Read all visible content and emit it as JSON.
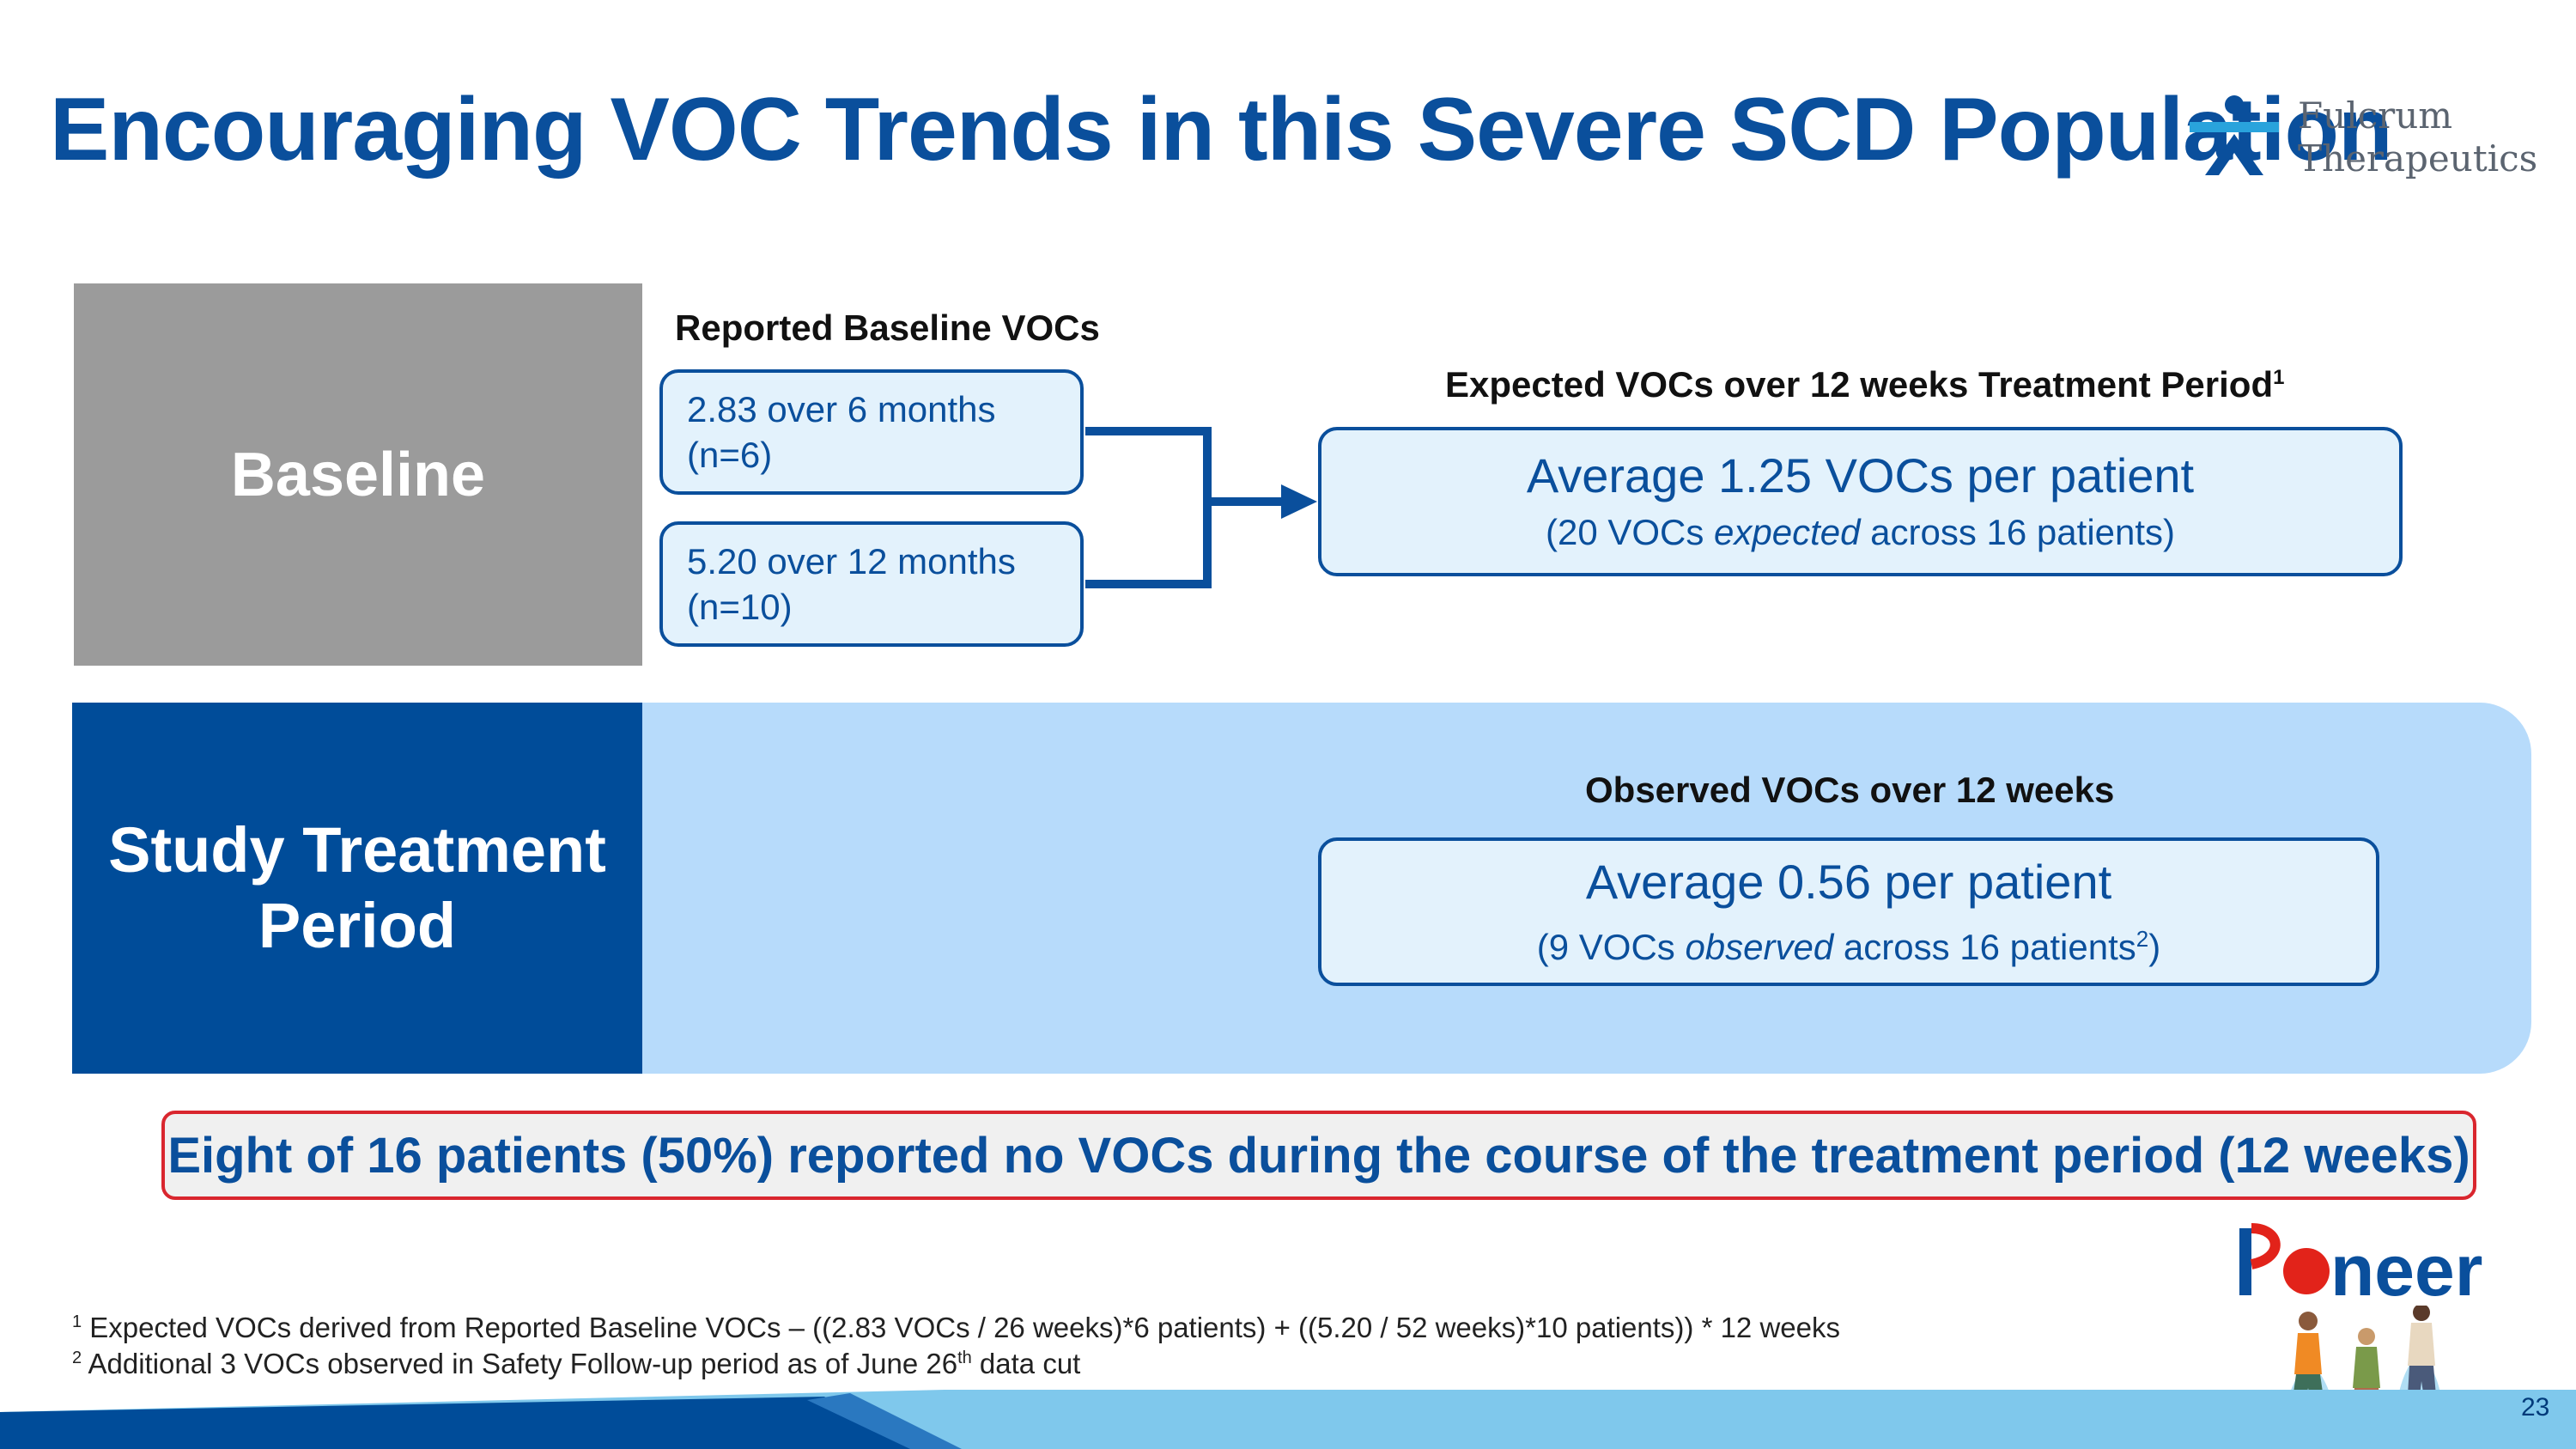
{
  "title": "Encouraging VOC Trends in this Severe SCD Population",
  "logo": {
    "line1": "Fulcrum",
    "line2": "Therapeutics"
  },
  "baseline": {
    "label": "Baseline",
    "reported_heading": "Reported Baseline VOCs",
    "box_6mo": {
      "line1": "2.83 over 6 months",
      "line2": "(n=6)"
    },
    "box_12mo": {
      "line1": "5.20 over 12 months",
      "line2": "(n=10)"
    },
    "expected_heading": "Expected VOCs over 12 weeks Treatment Period",
    "expected_heading_sup": "1",
    "expected_main": "Average 1.25 VOCs per patient",
    "expected_sub_pre": "(20 VOCs ",
    "expected_sub_em": "expected",
    "expected_sub_post": " across 16 patients)"
  },
  "study": {
    "label_line1": "Study Treatment",
    "label_line2": "Period",
    "observed_heading": "Observed VOCs over 12 weeks",
    "observed_main": "Average 0.56 per patient",
    "observed_sub_pre": "(9 VOCs ",
    "observed_sub_em": "observed",
    "observed_sub_post": " across 16 patients",
    "observed_sub_sup": "2",
    "observed_sub_end": ")"
  },
  "highlight": "Eight of 16 patients (50%) reported no VOCs during the course of the treatment period (12 weeks)",
  "footnotes": {
    "f1_sup": "1",
    "f1_text": " Expected VOCs derived from Reported Baseline VOCs – ((2.83 VOCs / 26 weeks)*6 patients) +  ((5.20 / 52 weeks)*10 patients)) * 12 weeks",
    "f2_sup": "2",
    "f2_text_pre": " Additional 3 VOCs observed in Safety Follow-up period as of June 26",
    "f2_text_sup": "th",
    "f2_text_post": " data cut"
  },
  "pioneer": "Pioneer",
  "page_number": "23",
  "colors": {
    "title_blue": "#0a4f9c",
    "navy": "#004c99",
    "light_blue_band": "#b7dbfb",
    "box_fill": "#e3f2fc",
    "grey_block": "#9b9b9b",
    "highlight_border": "#d9262e",
    "pioneer_red": "#e2231a"
  }
}
